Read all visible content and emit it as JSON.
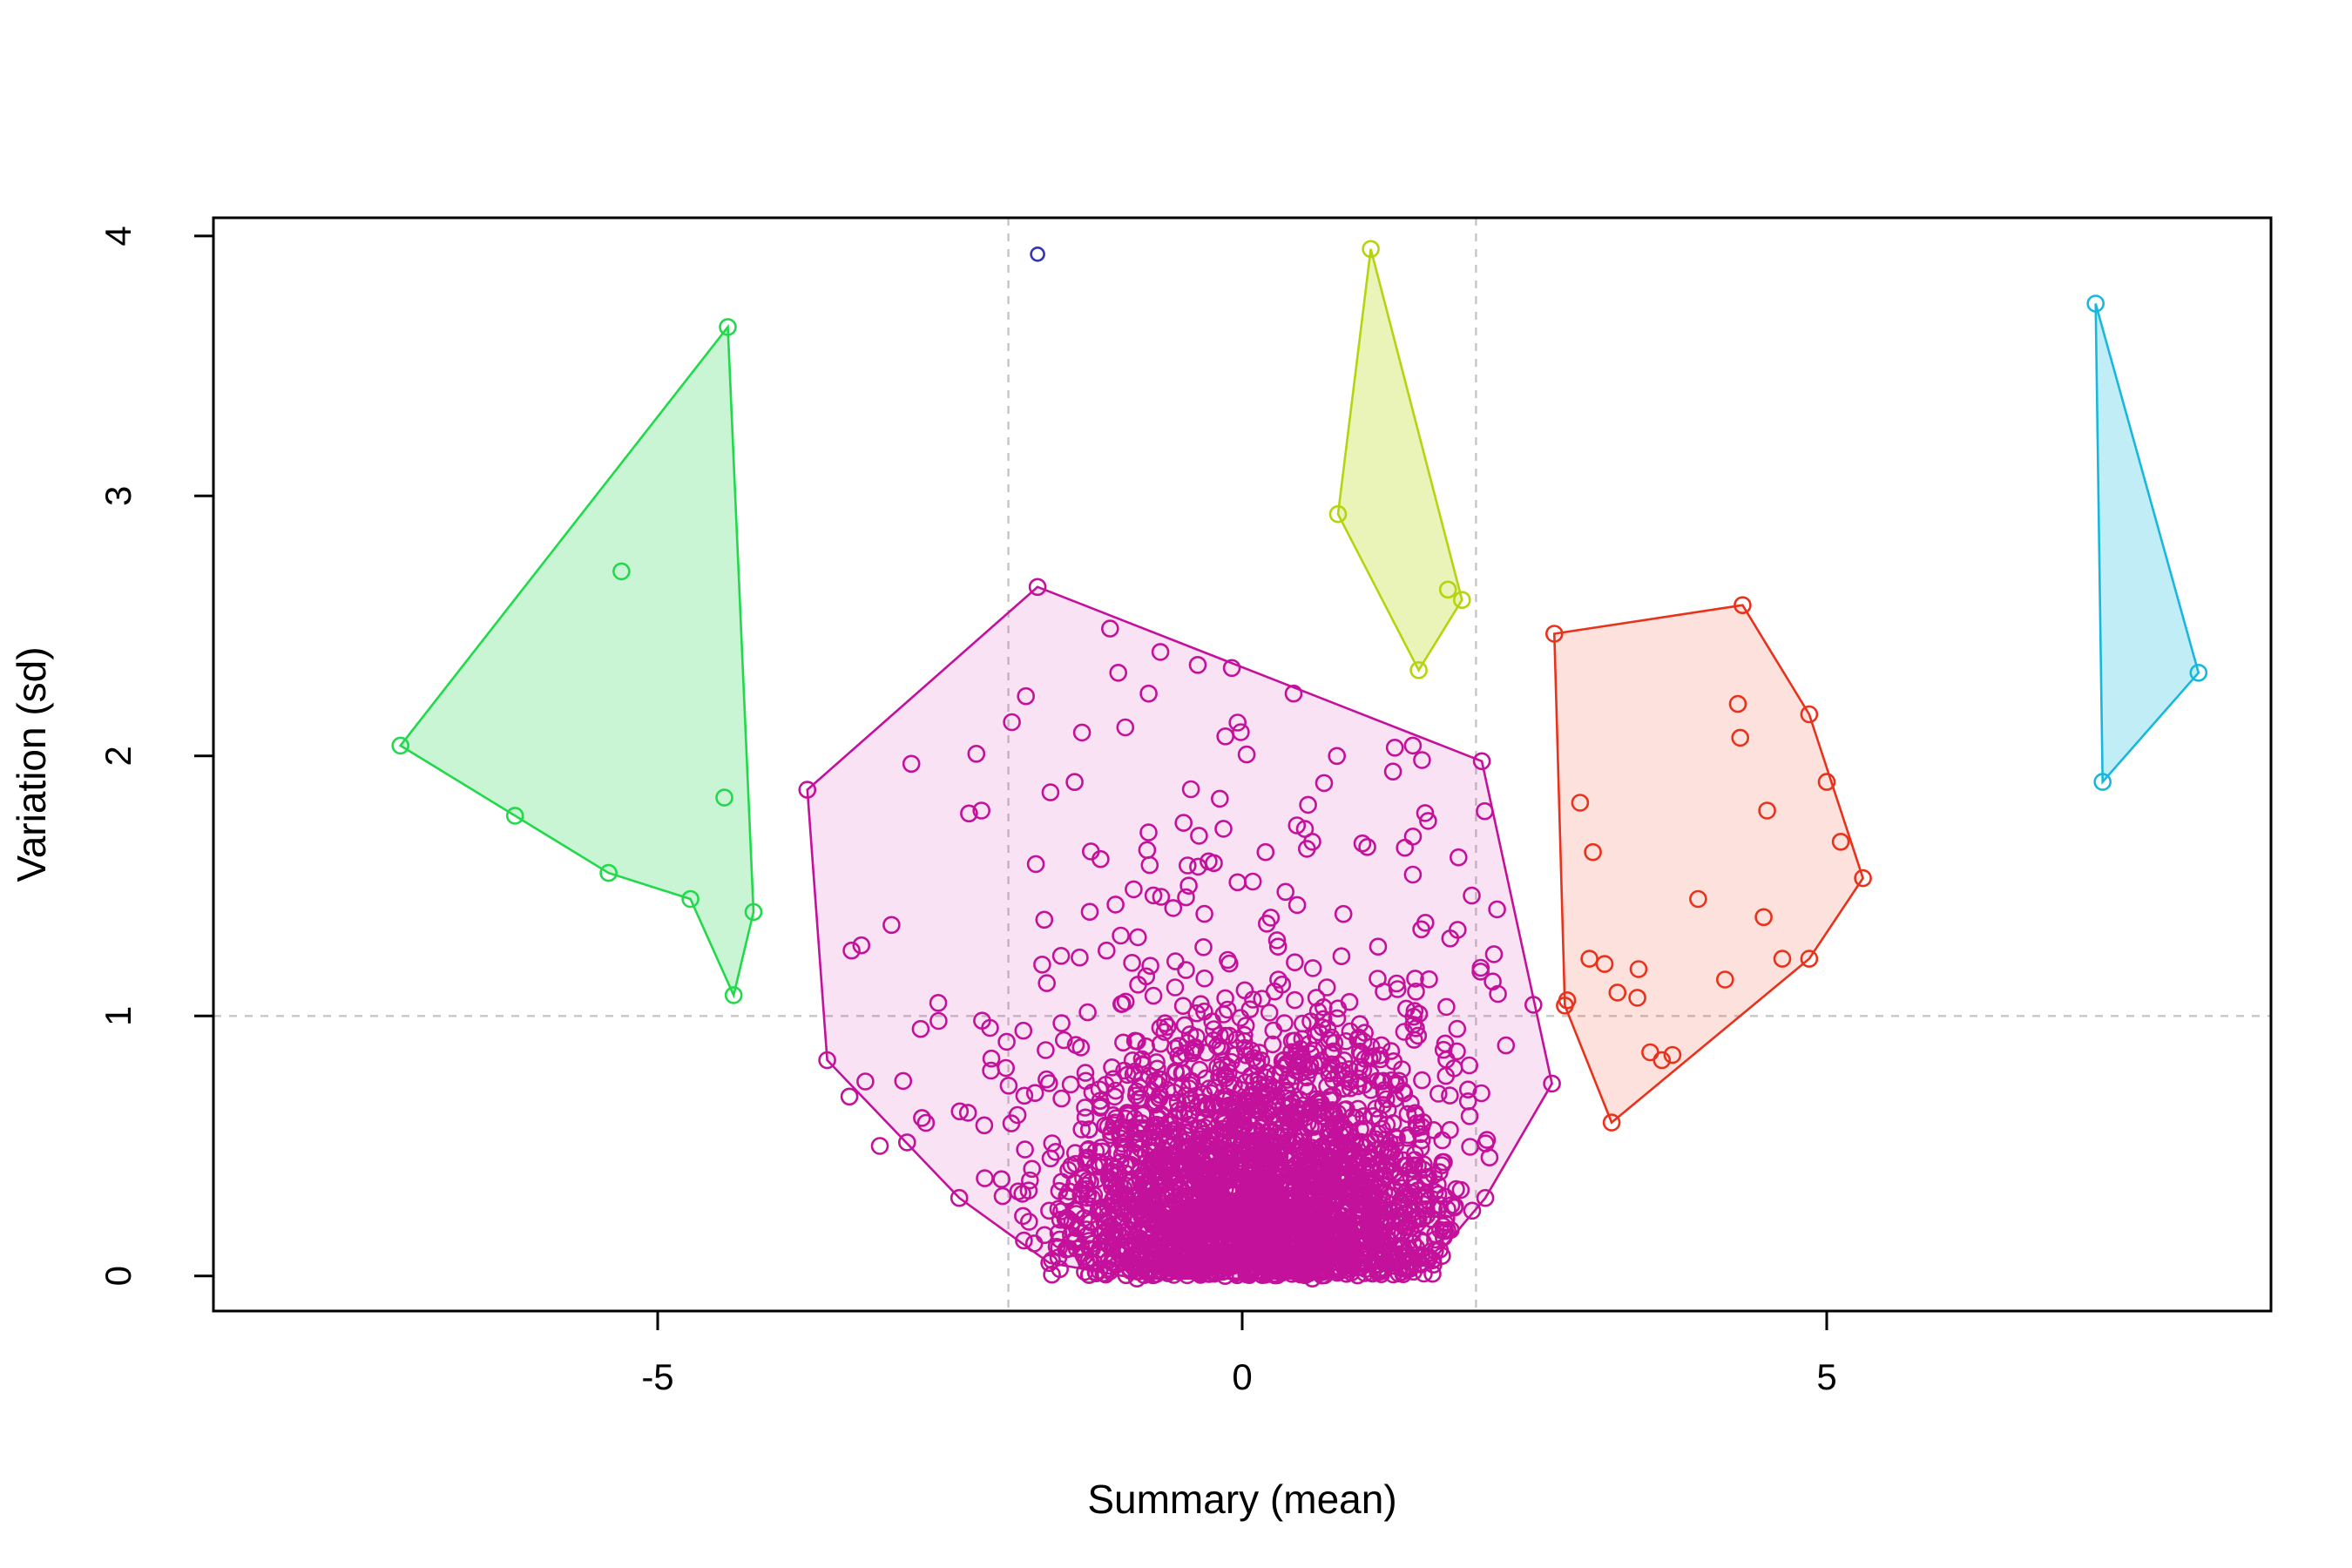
{
  "chart_data": {
    "type": "scatter",
    "title": "",
    "xlabel": "Summary (mean)",
    "ylabel": "Variation (sd)",
    "xlim": [
      -8.8,
      8.8
    ],
    "ylim": [
      -0.135,
      4.07
    ],
    "xticks": [
      -5,
      0,
      5
    ],
    "xtick_labels": [
      "-5",
      "0",
      "5"
    ],
    "yticks": [
      0,
      1,
      2,
      3,
      4
    ],
    "ytick_labels": [
      "0",
      "1",
      "2",
      "3",
      "4"
    ],
    "grid": false,
    "legend_position": "none",
    "reference_lines": {
      "vertical_x": [
        -2,
        2
      ],
      "horizontal_y": [
        1
      ],
      "color": "#c6c6c6",
      "dash": [
        9,
        9
      ]
    },
    "point_style": {
      "shape": "open-circle",
      "radius": 9,
      "stroke_width": 2.6
    },
    "clusters": [
      {
        "name": "green-cluster",
        "color": "#22d94b",
        "fill": "rgba(60,220,100,0.28)",
        "hull": [
          [
            -4.4,
            3.65
          ],
          [
            -7.2,
            2.04
          ],
          [
            -6.22,
            1.77
          ],
          [
            -5.42,
            1.55
          ],
          [
            -4.72,
            1.45
          ],
          [
            -4.35,
            1.08
          ],
          [
            -4.18,
            1.4
          ]
        ],
        "points": [
          [
            -4.4,
            3.65
          ],
          [
            -7.2,
            2.04
          ],
          [
            -6.22,
            1.77
          ],
          [
            -5.42,
            1.55
          ],
          [
            -4.72,
            1.45
          ],
          [
            -4.35,
            1.08
          ],
          [
            -4.18,
            1.4
          ],
          [
            -5.31,
            2.71
          ],
          [
            -4.43,
            1.84
          ]
        ]
      },
      {
        "name": "magenta-cluster",
        "color": "#c4119b",
        "fill": "rgba(200,30,160,0.13)",
        "hull": [
          [
            -1.75,
            2.65
          ],
          [
            2.05,
            1.98
          ],
          [
            2.65,
            0.74
          ],
          [
            2.08,
            0.3
          ],
          [
            1.63,
            0.06
          ],
          [
            0.6,
            -0.01
          ],
          [
            -0.9,
            -0.01
          ],
          [
            -1.65,
            0.05
          ],
          [
            -2.42,
            0.3
          ],
          [
            -3.55,
            0.83
          ],
          [
            -3.72,
            1.87
          ]
        ],
        "points": [
          [
            -1.75,
            2.65
          ],
          [
            2.05,
            1.98
          ],
          [
            2.65,
            0.74
          ],
          [
            2.08,
            0.3
          ],
          [
            1.63,
            0.06
          ],
          [
            0.6,
            -0.01
          ],
          [
            -0.9,
            -0.01
          ],
          [
            -1.65,
            0.05
          ],
          [
            -2.42,
            0.3
          ],
          [
            -3.55,
            0.83
          ],
          [
            -3.72,
            1.87
          ],
          [
            -1.13,
            2.49
          ],
          [
            -1.06,
            2.32
          ],
          [
            -0.8,
            2.24
          ],
          [
            -0.38,
            2.35
          ],
          [
            -0.7,
            2.4
          ],
          [
            -1.37,
            2.09
          ],
          [
            -1.0,
            2.11
          ],
          [
            -1.85,
            2.23
          ],
          [
            -1.97,
            2.13
          ],
          [
            -2.83,
            1.97
          ],
          [
            -2.23,
            1.79
          ],
          [
            -1.64,
            1.86
          ],
          [
            0.44,
            2.24
          ],
          [
            0.81,
            2.0
          ],
          [
            1.29,
            1.94
          ],
          [
            1.46,
            2.04
          ],
          [
            1.59,
            1.75
          ],
          [
            1.07,
            1.65
          ],
          [
            0.6,
            1.67
          ],
          [
            0.2,
            1.63
          ],
          [
            -0.16,
            1.72
          ],
          [
            1.85,
            1.61
          ],
          [
            2.18,
            1.41
          ],
          [
            -3.0,
            1.35
          ],
          [
            -2.6,
            1.05
          ],
          [
            -2.75,
            0.95
          ],
          [
            -3.36,
            0.69
          ],
          [
            -3.1,
            0.5
          ],
          [
            -2.9,
            0.75
          ]
        ],
        "dense_cloud": {
          "seed": 7,
          "core": {
            "count": 2400,
            "cx": 0.12,
            "x_sd": 0.8,
            "y_sd": 0.4,
            "rx": 1.78,
            "ry": 1.12
          },
          "spread": {
            "count": 520,
            "cx": 0.1,
            "x_sd": 1.45,
            "y_sd": 0.85
          }
        }
      },
      {
        "name": "yellowgreen-cluster",
        "color": "#b5d40e",
        "fill": "rgba(185,215,20,0.30)",
        "hull": [
          [
            1.1,
            3.95
          ],
          [
            0.82,
            2.93
          ],
          [
            1.51,
            2.33
          ],
          [
            1.88,
            2.6
          ]
        ],
        "points": [
          [
            1.1,
            3.95
          ],
          [
            0.82,
            2.93
          ],
          [
            1.51,
            2.33
          ],
          [
            1.88,
            2.6
          ],
          [
            1.76,
            2.64
          ]
        ]
      },
      {
        "name": "red-cluster",
        "color": "#e8321c",
        "fill": "rgba(235,70,45,0.16)",
        "hull": [
          [
            2.67,
            2.47
          ],
          [
            4.28,
            2.58
          ],
          [
            4.85,
            2.16
          ],
          [
            5.31,
            1.53
          ],
          [
            4.85,
            1.22
          ],
          [
            3.16,
            0.59
          ],
          [
            2.76,
            1.04
          ]
        ],
        "points": [
          [
            2.67,
            2.47
          ],
          [
            4.28,
            2.58
          ],
          [
            4.85,
            2.16
          ],
          [
            5.31,
            1.53
          ],
          [
            4.85,
            1.22
          ],
          [
            3.16,
            0.59
          ],
          [
            2.76,
            1.04
          ],
          [
            4.24,
            2.2
          ],
          [
            4.26,
            2.07
          ],
          [
            4.49,
            1.79
          ],
          [
            5.0,
            1.9
          ],
          [
            5.12,
            1.67
          ],
          [
            2.89,
            1.82
          ],
          [
            3.0,
            1.63
          ],
          [
            2.97,
            1.22
          ],
          [
            3.1,
            1.2
          ],
          [
            3.39,
            1.18
          ],
          [
            3.21,
            1.09
          ],
          [
            3.38,
            1.07
          ],
          [
            2.78,
            1.06
          ],
          [
            3.68,
            0.85
          ],
          [
            3.59,
            0.83
          ],
          [
            3.49,
            0.86
          ],
          [
            4.13,
            1.14
          ],
          [
            4.62,
            1.22
          ],
          [
            4.46,
            1.38
          ],
          [
            3.9,
            1.45
          ]
        ]
      },
      {
        "name": "cyan-cluster",
        "color": "#18b8dc",
        "fill": "rgba(50,195,225,0.30)",
        "hull": [
          [
            7.3,
            3.74
          ],
          [
            8.18,
            2.32
          ],
          [
            7.36,
            1.9
          ]
        ],
        "points": [
          [
            7.3,
            3.74
          ],
          [
            8.18,
            2.32
          ],
          [
            7.36,
            1.9
          ]
        ]
      },
      {
        "name": "blue-outlier",
        "color": "#3434b4",
        "fill": "none",
        "radius": 7.5,
        "hull": [],
        "points": [
          [
            -1.75,
            3.93
          ]
        ]
      }
    ]
  }
}
